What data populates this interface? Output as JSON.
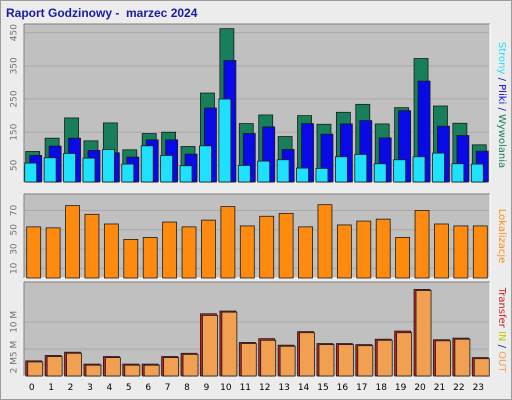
{
  "title": "Raport Godzinowy -  marzec 2024",
  "colors": {
    "strony": "#17805a",
    "pliki": "#0a0ae8",
    "wywolania": "#1ee0ff",
    "lokalizacje": "#ff8a10",
    "transfer_in": "#cc2020",
    "transfer_out": "#f0a050",
    "panel_bg": "#c0c0c0",
    "frame_bg": "#ececec"
  },
  "chart_data": [
    {
      "type": "bar",
      "categories": [
        "0",
        "1",
        "2",
        "3",
        "4",
        "5",
        "6",
        "7",
        "8",
        "9",
        "10",
        "11",
        "12",
        "13",
        "14",
        "15",
        "16",
        "17",
        "18",
        "19",
        "20",
        "21",
        "22",
        "23"
      ],
      "yticks": [
        "50",
        "150",
        "250",
        "350",
        "450"
      ],
      "ylim": [
        0,
        470
      ],
      "series": [
        {
          "name": "Strony",
          "values": [
            92,
            132,
            193,
            124,
            178,
            97,
            146,
            150,
            107,
            268,
            462,
            176,
            202,
            137,
            200,
            174,
            210,
            234,
            175,
            224,
            372,
            229,
            177,
            112
          ]
        },
        {
          "name": "Pliki",
          "values": [
            80,
            108,
            132,
            95,
            88,
            75,
            127,
            127,
            84,
            223,
            366,
            146,
            166,
            98,
            176,
            144,
            175,
            185,
            133,
            215,
            304,
            168,
            140,
            93
          ]
        },
        {
          "name": "Wywolania",
          "values": [
            57,
            73,
            86,
            72,
            98,
            54,
            109,
            80,
            49,
            109,
            250,
            50,
            63,
            67,
            42,
            41,
            76,
            83,
            55,
            67,
            76,
            87,
            55,
            54
          ]
        }
      ],
      "side_labels": [
        "Strony",
        " / ",
        "Pliki",
        " / ",
        "Wywolania"
      ]
    },
    {
      "type": "bar",
      "categories": [
        "0",
        "1",
        "2",
        "3",
        "4",
        "5",
        "6",
        "7",
        "8",
        "9",
        "10",
        "11",
        "12",
        "13",
        "14",
        "15",
        "16",
        "17",
        "18",
        "19",
        "20",
        "21",
        "22",
        "23"
      ],
      "yticks": [
        "10",
        "30",
        "50",
        "70"
      ],
      "ylim": [
        0,
        85
      ],
      "series": [
        {
          "name": "Lokalizacje",
          "values": [
            53,
            52,
            75,
            66,
            56,
            40,
            42,
            58,
            53,
            60,
            74,
            54,
            64,
            67,
            53,
            76,
            55,
            59,
            61,
            42,
            70,
            56,
            54,
            54
          ]
        }
      ],
      "side_labels": [
        "Lokalizacje"
      ]
    },
    {
      "type": "bar",
      "categories": [
        "0",
        "1",
        "2",
        "3",
        "4",
        "5",
        "6",
        "7",
        "8",
        "9",
        "10",
        "11",
        "12",
        "13",
        "14",
        "15",
        "16",
        "17",
        "18",
        "19",
        "20",
        "21",
        "22",
        "23"
      ],
      "yticks": [
        "2 M",
        "5 M",
        "10 M"
      ],
      "ylim": [
        0,
        17
      ],
      "series": [
        {
          "name": "IN",
          "values": [
            2.8,
            3.8,
            4.4,
            2.2,
            3.6,
            2.2,
            2.2,
            3.6,
            4.2,
            11.5,
            12.0,
            6.2,
            6.9,
            5.7,
            8.2,
            6.0,
            6.0,
            5.8,
            6.8,
            8.3,
            16.0,
            6.7,
            7.0,
            3.4
          ]
        },
        {
          "name": "OUT",
          "values": [
            2.6,
            3.6,
            4.2,
            2.0,
            3.4,
            2.0,
            2.0,
            3.4,
            4.0,
            11.2,
            11.8,
            6.0,
            6.6,
            5.5,
            8.0,
            5.8,
            5.8,
            5.6,
            6.6,
            8.0,
            15.8,
            6.5,
            6.8,
            3.2
          ]
        }
      ],
      "side_labels": [
        "Transfer",
        " IN ",
        "/",
        " OUT"
      ]
    }
  ]
}
